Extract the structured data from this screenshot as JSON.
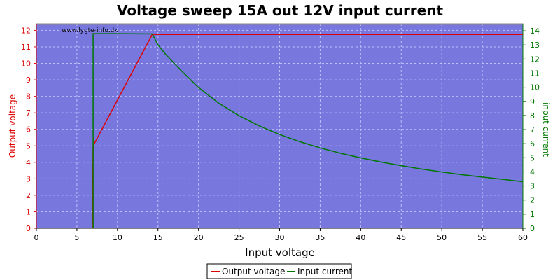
{
  "chart_data": {
    "type": "line",
    "title": "Voltage sweep 15A out 12V input current",
    "xlabel": "Input voltage",
    "ylabel_left": "Output voltage",
    "ylabel_right": "input current",
    "watermark": "www.lygte-info.dk",
    "xlim": [
      0,
      60
    ],
    "ylim_left": [
      0,
      12.4
    ],
    "ylim_right": [
      0,
      14.5
    ],
    "x_ticks": [
      "0",
      "5",
      "10",
      "15",
      "20",
      "25",
      "30",
      "35",
      "40",
      "45",
      "50",
      "55",
      "60"
    ],
    "y_left_ticks": [
      "0",
      "1",
      "2",
      "3",
      "4",
      "5",
      "6",
      "7",
      "8",
      "9",
      "10",
      "11",
      "12"
    ],
    "y_right_ticks": [
      "0",
      "1",
      "2",
      "3",
      "4",
      "5",
      "6",
      "7",
      "8",
      "9",
      "10",
      "11",
      "12",
      "13",
      "14"
    ],
    "grid": true,
    "legend_position": "bottom-center",
    "plot_background": "#7777dd",
    "series": [
      {
        "name": "Output voltage",
        "axis": "left",
        "color": "#dd0000",
        "x": [
          6.9,
          6.9,
          7.0,
          14.3,
          14.5,
          60
        ],
        "y": [
          0,
          0,
          5.0,
          11.75,
          11.75,
          11.75
        ]
      },
      {
        "name": "Input current",
        "axis": "right",
        "color": "#007700",
        "x": [
          7.0,
          7.0,
          10,
          14.3,
          15,
          16,
          17,
          18,
          20,
          22.5,
          25,
          27.5,
          30,
          32.5,
          35,
          37.5,
          40,
          42.5,
          45,
          47.5,
          50,
          52.5,
          55,
          57.5,
          60
        ],
        "y": [
          0,
          13.8,
          13.8,
          13.78,
          13.0,
          12.3,
          11.7,
          11.1,
          9.98,
          8.87,
          7.98,
          7.26,
          6.65,
          6.14,
          5.7,
          5.32,
          4.99,
          4.7,
          4.44,
          4.2,
          3.99,
          3.8,
          3.63,
          3.47,
          3.3
        ]
      }
    ],
    "legend": [
      "Output voltage",
      "Input current"
    ]
  },
  "colors": {
    "left_axis": "#dd0000",
    "right_axis": "#007700",
    "grid": "#c0c0ff"
  }
}
